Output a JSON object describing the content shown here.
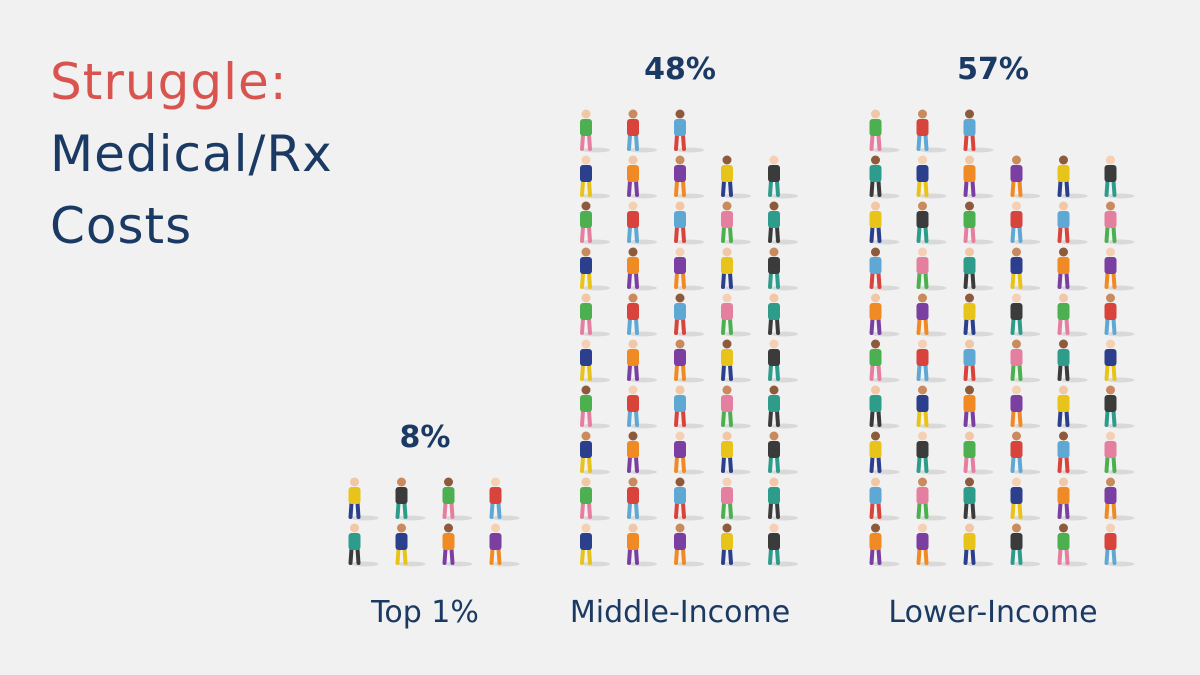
{
  "chart_data": {
    "type": "pictogram",
    "title": "Struggle:",
    "subtitle": "Medical/Rx Costs",
    "categories": [
      "Top 1%",
      "Middle-Income",
      "Lower-Income"
    ],
    "values": [
      8,
      48,
      57
    ],
    "value_labels": [
      "8%",
      "48%",
      "57%"
    ],
    "title_color": "#d9534f",
    "color": "#1b3a63"
  }
}
